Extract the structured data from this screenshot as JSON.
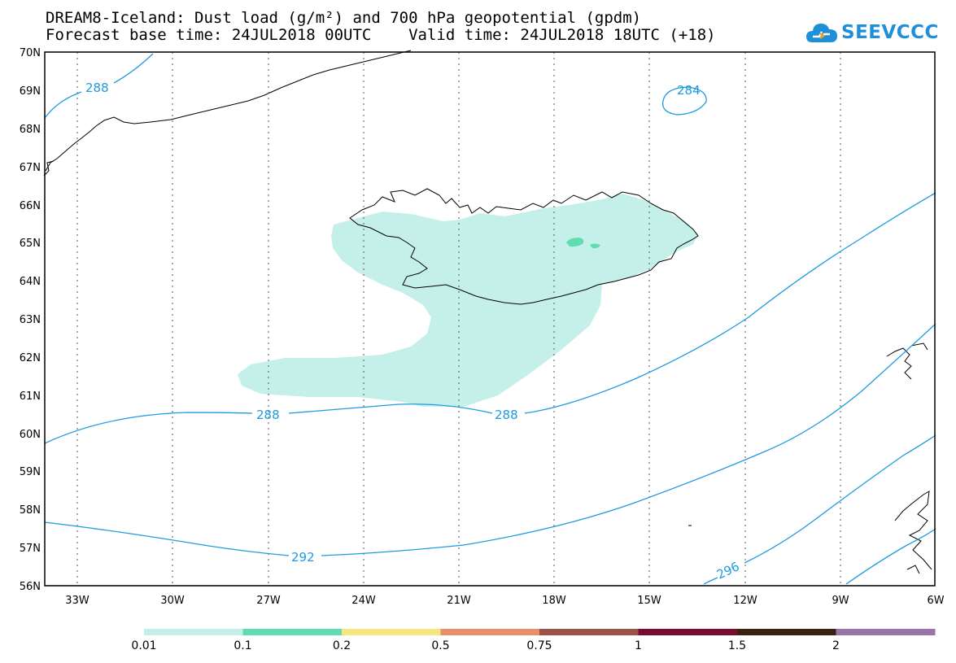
{
  "title_line1": "DREAM8-Iceland: Dust load (g/m²) and 700 hPa geopotential (gpdm)",
  "title_line2": "Forecast base time: 24JUL2018 00UTC    Valid time: 24JUL2018 18UTC (+18)",
  "logo_text": "SEEVCCC",
  "logo_icon": "cloud-icon",
  "lat_labels": [
    "70N",
    "69N",
    "68N",
    "67N",
    "66N",
    "65N",
    "64N",
    "63N",
    "62N",
    "61N",
    "60N",
    "59N",
    "58N",
    "57N",
    "56N"
  ],
  "lon_labels": [
    "33W",
    "30W",
    "27W",
    "24W",
    "21W",
    "18W",
    "15W",
    "12W",
    "9W",
    "6W"
  ],
  "contour_labels": {
    "c288a": "288",
    "c284": "284",
    "c288b": "288",
    "c288c": "288",
    "c292": "292",
    "c296": "296"
  },
  "contour_color": "#1e9be0",
  "dust_color_low": "#c5f0ea",
  "dust_color_mid": "#5fdcb0",
  "colorbar": {
    "colors": [
      "#c5f0ea",
      "#5fdcb0",
      "#f5e680",
      "#e88f6a",
      "#a0504a",
      "#7a0a2e",
      "#3a2210",
      "#9a73a8"
    ],
    "labels": [
      "0.01",
      "0.1",
      "0.2",
      "0.5",
      "0.75",
      "1",
      "1.5",
      "2"
    ]
  }
}
